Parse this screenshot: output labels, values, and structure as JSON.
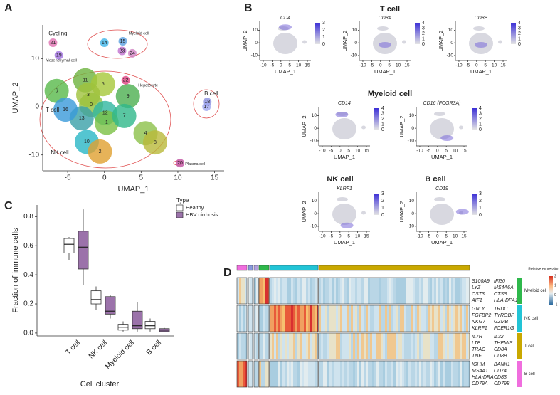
{
  "panel_labels": [
    "A",
    "B",
    "C",
    "D"
  ],
  "chart_data": [
    {
      "type": "scatter",
      "xlabel": "UMAP_1",
      "ylabel": "UMAP_2",
      "xlim": [
        -8.4,
        16.3
      ],
      "ylim": [
        -13.3,
        17
      ],
      "xticks": [
        -5,
        0,
        5,
        10,
        15
      ],
      "yticks": [
        -10,
        0,
        10
      ],
      "clusters": [
        {
          "label": "0",
          "x": -1.8,
          "y": 0.4,
          "color": "#8fbf3f"
        },
        {
          "label": "11",
          "x": -2.6,
          "y": 5.5,
          "color": "#6db33f"
        },
        {
          "label": "5",
          "x": -0.2,
          "y": 4.7,
          "color": "#a6c83a"
        },
        {
          "label": "6",
          "x": -6.5,
          "y": 3.3,
          "color": "#58b94a"
        },
        {
          "label": "3",
          "x": -2.2,
          "y": 2.5,
          "color": "#9fc23c"
        },
        {
          "label": "9",
          "x": 3.2,
          "y": 2.2,
          "color": "#4caf50"
        },
        {
          "label": "12",
          "x": 0.1,
          "y": -1.3,
          "color": "#2fb6a0"
        },
        {
          "label": "13",
          "x": -3.1,
          "y": -2.4,
          "color": "#3aa0a8"
        },
        {
          "label": "1",
          "x": 0.3,
          "y": -3.3,
          "color": "#7ac043"
        },
        {
          "label": "7",
          "x": 2.7,
          "y": -1.9,
          "color": "#2fb88a"
        },
        {
          "label": "4",
          "x": 5.6,
          "y": -5.5,
          "color": "#8cc04a"
        },
        {
          "label": "8",
          "x": 6.9,
          "y": -7.4,
          "color": "#b9b93a"
        },
        {
          "label": "10",
          "x": -2.4,
          "y": -7.3,
          "color": "#29b6c5"
        },
        {
          "label": "2",
          "x": -0.6,
          "y": -9.3,
          "color": "#e0a030"
        },
        {
          "label": "16",
          "x": -5.3,
          "y": -0.6,
          "color": "#3a9ad9"
        },
        {
          "label": "14",
          "x": 0,
          "y": 13.3,
          "color": "#3fb5e8"
        },
        {
          "label": "15",
          "x": 2.5,
          "y": 13.6,
          "color": "#5aa0e0"
        },
        {
          "label": "23",
          "x": 2.4,
          "y": 11.6,
          "color": "#c070d0"
        },
        {
          "label": "24",
          "x": 3.8,
          "y": 11.1,
          "color": "#d080c0"
        },
        {
          "label": "21",
          "x": -7,
          "y": 13.3,
          "color": "#e070b0"
        },
        {
          "label": "19",
          "x": -6.2,
          "y": 10.7,
          "color": "#a070e0"
        },
        {
          "label": "22",
          "x": 2.9,
          "y": 5.5,
          "color": "#e04080"
        },
        {
          "label": "18",
          "x": 14,
          "y": 1,
          "color": "#8a90e0"
        },
        {
          "label": "17",
          "x": 13.9,
          "y": 0,
          "color": "#a0a8f0"
        },
        {
          "label": "20",
          "x": 10.3,
          "y": -11.7,
          "color": "#c050a0"
        }
      ],
      "annotations": [
        {
          "text": "Myeloid cell",
          "x": 3.3,
          "y": 15.2
        },
        {
          "text": "Cycling",
          "x": -7.6,
          "y": 15.2
        },
        {
          "text": "Mesenchymal cell",
          "x": -8,
          "y": 9.6
        },
        {
          "text": "Hepatocyte",
          "x": 4.6,
          "y": 4.4
        },
        {
          "text": "B cell",
          "x": 13.6,
          "y": 2.7
        },
        {
          "text": "T cell",
          "x": -8,
          "y": -0.7
        },
        {
          "text": "NK cell",
          "x": -7.3,
          "y": -9.6
        },
        {
          "text": "Plasma cell",
          "x": 11,
          "y": -11.9
        }
      ]
    },
    {
      "type": "box",
      "ylabel": "Fraction of immune cells",
      "xlabel": "Cell cluster",
      "legend_title": "Type",
      "categories": [
        "T cell",
        "NK cell",
        "Myeloid cell",
        "B cell"
      ],
      "ylim": [
        -0.02,
        0.88
      ],
      "yticks": [
        {
          "value": 0,
          "label": "0.0"
        },
        0.2,
        0.4,
        0.6,
        0.8
      ],
      "series": [
        {
          "name": "Healthy",
          "color": "#ffffff",
          "values": [
            {
              "min": 0.5,
              "q1": 0.55,
              "median": 0.61,
              "q3": 0.65,
              "max": 0.66
            },
            {
              "min": 0.16,
              "q1": 0.2,
              "median": 0.23,
              "q3": 0.29,
              "max": 0.32
            },
            {
              "min": 0.01,
              "q1": 0.02,
              "median": 0.04,
              "q3": 0.06,
              "max": 0.08
            },
            {
              "min": 0.01,
              "q1": 0.03,
              "median": 0.05,
              "q3": 0.08,
              "max": 0.1
            }
          ]
        },
        {
          "name": "HBV cirrhosis",
          "color": "#9b72aa",
          "values": [
            {
              "min": 0.33,
              "q1": 0.44,
              "median": 0.59,
              "q3": 0.7,
              "max": 0.85
            },
            {
              "min": 0.1,
              "q1": 0.13,
              "median": 0.15,
              "q3": 0.25,
              "max": 0.26
            },
            {
              "min": 0.01,
              "q1": 0.03,
              "median": 0.05,
              "q3": 0.15,
              "max": 0.21
            },
            {
              "min": 0.005,
              "q1": 0.01,
              "median": 0.02,
              "q3": 0.03,
              "max": 0.035
            }
          ]
        }
      ]
    }
  ],
  "feature_plots": {
    "xlabel": "UMAP_1",
    "ylabel": "UMAP_2",
    "xlim": [
      -12,
      17
    ],
    "ylim": [
      -14,
      17
    ],
    "xticks": [
      -10,
      -5,
      0,
      5,
      10,
      15
    ],
    "yticks": [
      -10,
      0,
      10
    ],
    "groups": [
      {
        "title": "T cell",
        "plots": [
          {
            "gene": "CD4",
            "cbar_ticks": [
              3,
              2,
              1,
              0
            ]
          },
          {
            "gene": "CD8A",
            "cbar_ticks": [
              4,
              3,
              2,
              1,
              0
            ]
          },
          {
            "gene": "CD8B",
            "cbar_ticks": [
              4,
              3,
              2,
              1,
              0
            ]
          }
        ]
      },
      {
        "title": "Myeloid cell",
        "plots": [
          {
            "gene": "CD14",
            "cbar_ticks": [
              4,
              3,
              2,
              1,
              0
            ]
          },
          {
            "gene": "CD16 (FCGR3A)",
            "cbar_ticks": [
              4,
              3,
              2,
              1,
              0
            ]
          }
        ]
      },
      {
        "title": "NK cell",
        "plots": [
          {
            "gene": "KLRF1",
            "cbar_ticks": [
              3,
              2,
              1,
              0
            ]
          }
        ]
      },
      {
        "title": "B cell",
        "plots": [
          {
            "gene": "CD19",
            "cbar_ticks": [
              3,
              2,
              1,
              0
            ]
          }
        ]
      }
    ]
  },
  "heatmap": {
    "legend_title": "Relative expression",
    "legend_ticks": [
      2,
      1,
      0,
      -1
    ],
    "groups": [
      {
        "label": "Myeloid cell",
        "color": "#2eb84b",
        "genes_left": [
          "S100A9",
          "LYZ",
          "CST3",
          "AIF1"
        ],
        "genes_right": [
          "IFI30",
          "MS4A6A",
          "CTSS",
          "HLA-DPA1"
        ]
      },
      {
        "label": "NK cell",
        "color": "#22c4d6",
        "genes_left": [
          "GNLY",
          "FGFBP2",
          "NKG7",
          "KLRF1"
        ],
        "genes_right": [
          "TRDC",
          "TYROBP",
          "GZMB",
          "FCER1G"
        ]
      },
      {
        "label": "T cell",
        "color": "#c9a800",
        "genes_left": [
          "IL7R",
          "LTB",
          "TRAC",
          "TNF"
        ],
        "genes_right": [
          "IL32",
          "THEMIS",
          "CD8A",
          "CD8B"
        ]
      },
      {
        "label": "B cell",
        "color": "#f06ede",
        "genes_left": [
          "IGHM",
          "MS4A1",
          "HLA-DRA",
          "CD79A"
        ],
        "genes_right": [
          "BANK1",
          "CD74",
          "CD83",
          "CD79B"
        ]
      }
    ]
  }
}
